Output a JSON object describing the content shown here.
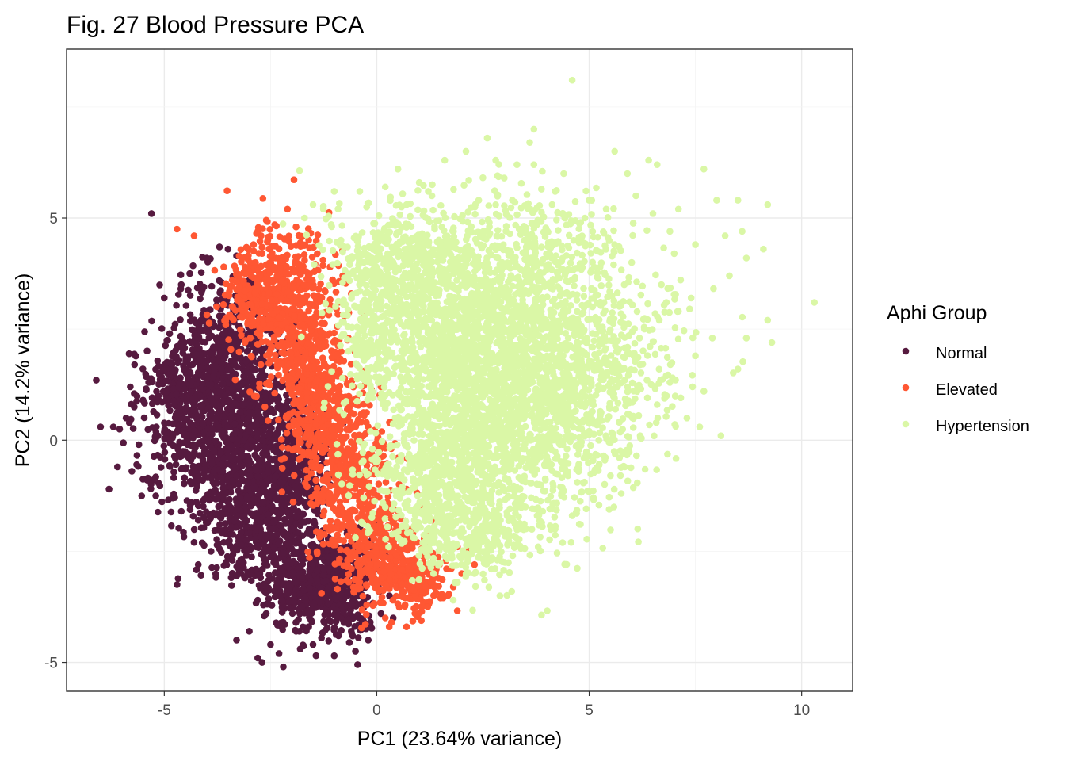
{
  "chart_data": {
    "type": "scatter",
    "title": "Fig. 27 Blood Pressure PCA",
    "xlabel": "PC1 (23.64% variance)",
    "ylabel": "PC2 (14.2% variance)",
    "xlim": [
      -7.3,
      11.2
    ],
    "ylim": [
      -5.65,
      8.8
    ],
    "x_ticks": [
      -5,
      0,
      5,
      10
    ],
    "x_tick_labels": [
      "-5",
      "0",
      "5",
      "10"
    ],
    "y_ticks": [
      -5,
      0,
      5
    ],
    "y_tick_labels": [
      "-5",
      "0",
      "5"
    ],
    "grid": true,
    "legend": {
      "title": "Aphi Group",
      "position": "right",
      "entries": [
        "Normal",
        "Elevated",
        "Hypertension"
      ]
    },
    "series": [
      {
        "name": "Normal",
        "color": "#561a3f",
        "points": [
          [
            -5.3,
            5.1
          ],
          [
            -6.6,
            1.35
          ],
          [
            -6.5,
            0.3
          ],
          [
            -6.3,
            -1.1
          ],
          [
            -6.2,
            0.3
          ],
          [
            -6.05,
            0.25
          ],
          [
            -6.1,
            -0.6
          ],
          [
            -4.7,
            -3.25
          ],
          [
            -4.2,
            -2.8
          ],
          [
            -4.2,
            -1.8
          ],
          [
            -3.3,
            -4.5
          ],
          [
            -3.0,
            -4.3
          ],
          [
            -2.8,
            -4.9
          ],
          [
            -2.7,
            -5.0
          ],
          [
            -2.5,
            -4.6
          ],
          [
            -2.3,
            -4.8
          ],
          [
            -2.2,
            -5.1
          ],
          [
            -1.8,
            -4.7
          ],
          [
            -1.5,
            -4.6
          ],
          [
            -1.0,
            -4.85
          ],
          [
            -0.5,
            -4.75
          ],
          [
            -0.45,
            -5.05
          ],
          [
            -0.2,
            -4.5
          ],
          [
            -5.0,
            3.2
          ],
          [
            -4.6,
            3.5
          ],
          [
            -4.4,
            3.75
          ],
          [
            -4.0,
            4.1
          ],
          [
            -3.7,
            4.35
          ],
          [
            -3.5,
            4.3
          ],
          [
            -3.3,
            4.15
          ],
          [
            -5.7,
            1.7
          ],
          [
            -5.8,
            1.2
          ],
          [
            -5.5,
            0.9
          ],
          [
            -5.9,
            0.5
          ],
          [
            -5.6,
            -0.1
          ],
          [
            -5.65,
            -0.55
          ],
          [
            -5.4,
            -0.9
          ],
          [
            -5.2,
            -1.25
          ],
          [
            -4.8,
            -1.3
          ],
          [
            -4.6,
            -1.6
          ],
          [
            -4.3,
            -2.3
          ],
          [
            -3.9,
            -2.5
          ],
          [
            -3.6,
            -2.3
          ],
          [
            -3.4,
            -2.7
          ],
          [
            -3.1,
            -3.1
          ],
          [
            -2.8,
            -3.6
          ],
          [
            -2.6,
            -3.9
          ],
          [
            -2.2,
            -4.1
          ],
          [
            -1.9,
            -4.3
          ],
          [
            -1.6,
            -4.2
          ],
          [
            -1.3,
            -4.45
          ],
          [
            -0.9,
            -4.4
          ],
          [
            -0.6,
            -4.3
          ],
          [
            -0.3,
            -4.1
          ],
          [
            -0.1,
            -3.7
          ],
          [
            0.1,
            -3.9
          ],
          [
            0.3,
            -3.5
          ],
          [
            -3.0,
            3.6
          ],
          [
            -2.8,
            3.3
          ],
          [
            -2.6,
            2.8
          ],
          [
            -2.3,
            2.4
          ],
          [
            -2.1,
            1.8
          ],
          [
            -1.9,
            1.3
          ],
          [
            -1.7,
            0.7
          ],
          [
            -1.5,
            0.2
          ],
          [
            -1.3,
            -0.4
          ],
          [
            -1.1,
            -1.0
          ],
          [
            -0.9,
            -1.6
          ],
          [
            -0.7,
            -2.1
          ],
          [
            -0.5,
            -2.6
          ],
          [
            -0.3,
            -3.0
          ]
        ],
        "clusters": [
          {
            "center": [
              -3.8,
              1.9
            ],
            "spread": [
              0.58,
              0.85
            ],
            "count": 420
          },
          {
            "center": [
              -4.0,
              0.1
            ],
            "spread": [
              0.72,
              0.72
            ],
            "count": 520
          },
          {
            "center": [
              -3.0,
              -1.5
            ],
            "spread": [
              0.62,
              0.75
            ],
            "count": 460
          },
          {
            "center": [
              -2.2,
              -1.4
            ],
            "spread": [
              0.55,
              0.9
            ],
            "count": 300
          },
          {
            "center": [
              -1.5,
              -3.3
            ],
            "spread": [
              0.62,
              0.55
            ],
            "count": 440
          },
          {
            "center": [
              -2.9,
              1.0
            ],
            "spread": [
              0.45,
              0.9
            ],
            "count": 260
          },
          {
            "center": [
              -1.9,
              -0.2
            ],
            "spread": [
              0.4,
              0.9
            ],
            "count": 230
          },
          {
            "center": [
              -0.8,
              -3.1
            ],
            "spread": [
              0.45,
              0.55
            ],
            "count": 200
          },
          {
            "center": [
              -4.6,
              1.3
            ],
            "spread": [
              0.45,
              0.45
            ],
            "count": 150
          }
        ]
      },
      {
        "name": "Elevated",
        "color": "#ff5733",
        "points": [
          [
            -4.7,
            4.75
          ],
          [
            -4.3,
            4.6
          ],
          [
            -2.1,
            5.2
          ],
          [
            -2.8,
            4.7
          ],
          [
            -2.6,
            4.95
          ],
          [
            -2.4,
            4.85
          ],
          [
            -1.9,
            4.8
          ],
          [
            -1.6,
            4.5
          ],
          [
            -3.6,
            3.9
          ],
          [
            -3.4,
            3.6
          ],
          [
            0.2,
            -4.0
          ],
          [
            0.35,
            -4.1
          ],
          [
            0.7,
            -4.2
          ],
          [
            0.9,
            -3.9
          ],
          [
            1.2,
            -3.75
          ],
          [
            1.5,
            -3.55
          ],
          [
            1.8,
            -3.3
          ],
          [
            2.0,
            -3.0
          ],
          [
            2.3,
            -2.8
          ],
          [
            1.9,
            -2.4
          ],
          [
            1.6,
            -2.0
          ],
          [
            1.3,
            -1.8
          ],
          [
            -0.6,
            3.3
          ],
          [
            -0.8,
            3.7
          ],
          [
            -1.1,
            3.9
          ],
          [
            -1.4,
            4.2
          ],
          [
            -0.3,
            2.8
          ],
          [
            -0.1,
            2.0
          ],
          [
            0.1,
            1.2
          ],
          [
            0.3,
            0.4
          ],
          [
            0.5,
            -0.4
          ],
          [
            0.7,
            -1.1
          ],
          [
            0.9,
            -1.6
          ],
          [
            -3.1,
            3.9
          ],
          [
            -2.9,
            4.4
          ]
        ],
        "clusters": [
          {
            "center": [
              -2.3,
              3.3
            ],
            "spread": [
              0.55,
              0.75
            ],
            "count": 380
          },
          {
            "center": [
              -1.7,
              2.0
            ],
            "spread": [
              0.5,
              0.8
            ],
            "count": 360
          },
          {
            "center": [
              -1.2,
              0.5
            ],
            "spread": [
              0.48,
              0.8
            ],
            "count": 340
          },
          {
            "center": [
              -0.6,
              -1.1
            ],
            "spread": [
              0.48,
              0.75
            ],
            "count": 340
          },
          {
            "center": [
              0.1,
              -2.6
            ],
            "spread": [
              0.55,
              0.55
            ],
            "count": 320
          },
          {
            "center": [
              0.9,
              -3.2
            ],
            "spread": [
              0.45,
              0.35
            ],
            "count": 160
          },
          {
            "center": [
              -2.9,
              3.3
            ],
            "spread": [
              0.3,
              0.45
            ],
            "count": 90
          }
        ]
      },
      {
        "name": "Hypertension",
        "color": "#daf7a6",
        "points": [
          [
            4.6,
            8.1
          ],
          [
            3.7,
            7.0
          ],
          [
            3.6,
            6.7
          ],
          [
            2.6,
            6.8
          ],
          [
            2.1,
            6.5
          ],
          [
            1.6,
            6.3
          ],
          [
            2.8,
            6.3
          ],
          [
            3.3,
            6.2
          ],
          [
            3.7,
            6.2
          ],
          [
            5.6,
            6.5
          ],
          [
            6.4,
            6.3
          ],
          [
            6.6,
            6.2
          ],
          [
            7.7,
            6.1
          ],
          [
            8.0,
            5.4
          ],
          [
            8.5,
            5.4
          ],
          [
            9.2,
            5.3
          ],
          [
            7.1,
            5.2
          ],
          [
            8.2,
            4.6
          ],
          [
            8.6,
            4.7
          ],
          [
            9.1,
            4.3
          ],
          [
            8.7,
            4.1
          ],
          [
            7.5,
            4.4
          ],
          [
            8.3,
            3.7
          ],
          [
            9.2,
            2.7
          ],
          [
            9.3,
            2.2
          ],
          [
            10.3,
            3.1
          ],
          [
            8.7,
            2.3
          ],
          [
            8.5,
            1.6
          ],
          [
            7.9,
            2.3
          ],
          [
            7.5,
            1.9
          ],
          [
            7.7,
            1.1
          ],
          [
            8.1,
            0.1
          ],
          [
            7.6,
            0.3
          ],
          [
            7.3,
            0.5
          ],
          [
            6.9,
            1.3
          ],
          [
            6.6,
            0.8
          ],
          [
            6.2,
            0.1
          ],
          [
            5.8,
            -0.3
          ],
          [
            5.5,
            -0.8
          ],
          [
            5.1,
            -1.3
          ],
          [
            4.6,
            -1.7
          ],
          [
            4.2,
            -2.0
          ],
          [
            3.8,
            -2.4
          ],
          [
            3.2,
            -2.6
          ],
          [
            2.7,
            -2.9
          ],
          [
            2.3,
            -3.0
          ],
          [
            1.9,
            -3.2
          ],
          [
            1.8,
            -3.6
          ],
          [
            2.9,
            -3.5
          ],
          [
            -1.7,
            5.0
          ],
          [
            -1.5,
            5.3
          ],
          [
            -1.0,
            5.6
          ],
          [
            -0.4,
            5.6
          ],
          [
            0.2,
            5.7
          ],
          [
            1.0,
            5.8
          ],
          [
            0.7,
            5.3
          ],
          [
            1.3,
            5.5
          ],
          [
            4.2,
            5.6
          ],
          [
            5.0,
            5.4
          ],
          [
            5.4,
            5.2
          ],
          [
            6.1,
            5.5
          ],
          [
            6.5,
            5.1
          ],
          [
            6.9,
            4.7
          ],
          [
            7.0,
            4.2
          ],
          [
            6.7,
            3.5
          ],
          [
            7.1,
            2.9
          ],
          [
            6.0,
            4.0
          ],
          [
            5.6,
            4.4
          ],
          [
            4.8,
            4.9
          ],
          [
            4.4,
            6.0
          ],
          [
            5.9,
            6.0
          ],
          [
            3.0,
            5.9
          ],
          [
            2.4,
            5.4
          ],
          [
            0.5,
            6.1
          ],
          [
            7.4,
            3.2
          ],
          [
            6.3,
            2.5
          ],
          [
            5.9,
            1.2
          ],
          [
            5.0,
            0.2
          ],
          [
            4.5,
            -0.8
          ],
          [
            3.5,
            -1.5
          ]
        ],
        "clusters": [
          {
            "center": [
              2.4,
              1.0
            ],
            "spread": [
              1.15,
              1.45
            ],
            "count": 1400
          },
          {
            "center": [
              1.2,
              2.8
            ],
            "spread": [
              0.9,
              1.0
            ],
            "count": 600
          },
          {
            "center": [
              3.5,
              2.6
            ],
            "spread": [
              1.1,
              1.1
            ],
            "count": 650
          },
          {
            "center": [
              4.2,
              0.4
            ],
            "spread": [
              1.0,
              1.1
            ],
            "count": 520
          },
          {
            "center": [
              1.3,
              -0.8
            ],
            "spread": [
              0.8,
              0.9
            ],
            "count": 420
          },
          {
            "center": [
              2.2,
              -2.0
            ],
            "spread": [
              0.8,
              0.55
            ],
            "count": 300
          },
          {
            "center": [
              0.4,
              4.2
            ],
            "spread": [
              0.9,
              0.55
            ],
            "count": 260
          },
          {
            "center": [
              5.6,
              2.0
            ],
            "spread": [
              0.9,
              1.0
            ],
            "count": 260
          },
          {
            "center": [
              3.5,
              4.5
            ],
            "spread": [
              1.2,
              0.6
            ],
            "count": 240
          },
          {
            "center": [
              -0.2,
              2.4
            ],
            "spread": [
              0.35,
              0.9
            ],
            "count": 160
          }
        ]
      }
    ]
  }
}
